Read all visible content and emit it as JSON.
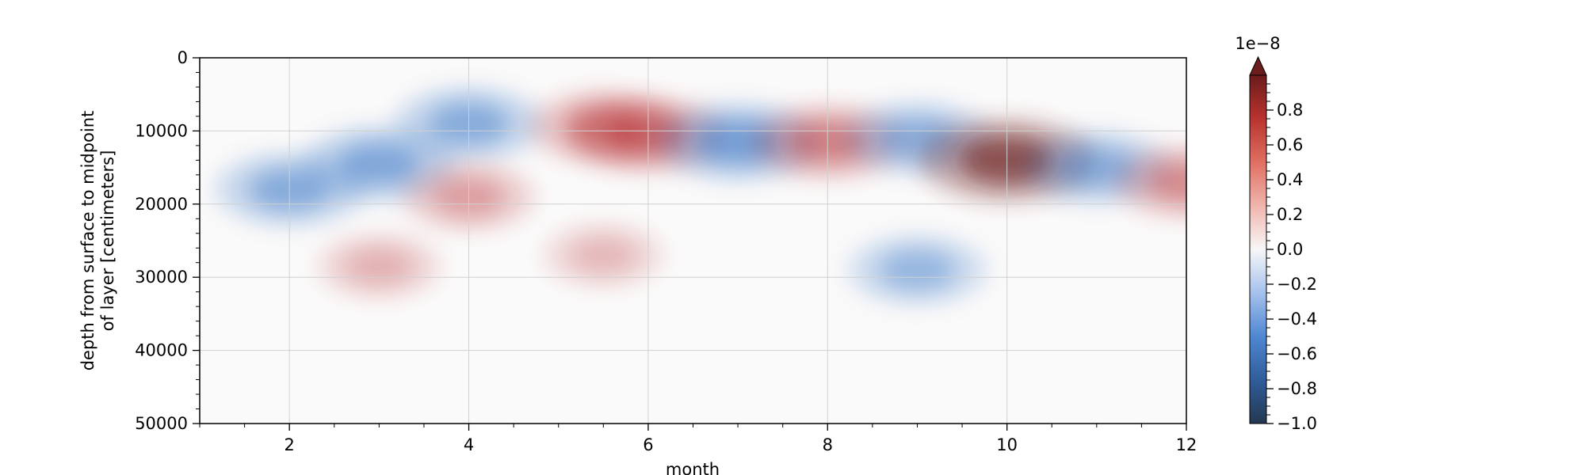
{
  "chart_data": {
    "type": "heatmap",
    "xlabel": "month",
    "ylabel_lines": [
      "depth from surface to midpoint",
      "of layer [centimeters]"
    ],
    "xlim": [
      1,
      12
    ],
    "ylim": [
      50000,
      0
    ],
    "x_ticks": [
      2,
      4,
      6,
      8,
      10,
      12
    ],
    "x_tick_labels": [
      "2",
      "4",
      "6",
      "8",
      "10",
      "12"
    ],
    "y_ticks": [
      0,
      10000,
      20000,
      30000,
      40000,
      50000
    ],
    "y_tick_labels": [
      "0",
      "10000",
      "20000",
      "30000",
      "40000",
      "50000"
    ],
    "grid": true,
    "colormap": "diverging blue-white-red",
    "colorbar": {
      "multiplier_label": "1e−8",
      "range": [
        -1.0,
        1.0
      ],
      "extend": "max",
      "ticks": [
        0.8,
        0.6,
        0.4,
        0.2,
        0.0,
        -0.2,
        -0.4,
        -0.6,
        -0.8,
        -1.0
      ],
      "tick_labels": [
        "0.8",
        "0.6",
        "0.4",
        "0.2",
        "0.0",
        "−0.2",
        "−0.4",
        "−0.6",
        "−0.8",
        "−1.0"
      ]
    },
    "features": [
      {
        "x": 2.0,
        "y": 18000,
        "value": -0.6
      },
      {
        "x": 3.0,
        "y": 14500,
        "value": -0.65
      },
      {
        "x": 4.0,
        "y": 9000,
        "value": -0.6
      },
      {
        "x": 4.0,
        "y": 19000,
        "value": 0.35
      },
      {
        "x": 5.5,
        "y": 9500,
        "value": 0.55
      },
      {
        "x": 6.0,
        "y": 10500,
        "value": 0.65
      },
      {
        "x": 7.0,
        "y": 11500,
        "value": -0.75
      },
      {
        "x": 8.0,
        "y": 11500,
        "value": 0.6
      },
      {
        "x": 9.0,
        "y": 11000,
        "value": -0.55
      },
      {
        "x": 9.0,
        "y": 29000,
        "value": -0.45
      },
      {
        "x": 10.0,
        "y": 14000,
        "value": 1.0
      },
      {
        "x": 11.0,
        "y": 15000,
        "value": -0.55
      },
      {
        "x": 12.0,
        "y": 17000,
        "value": 0.5
      },
      {
        "x": 3.0,
        "y": 28500,
        "value": 0.2
      },
      {
        "x": 5.5,
        "y": 27000,
        "value": 0.15
      }
    ]
  },
  "colors": {
    "negative_strong": "#2f6fc4",
    "positive_strong": "#b3262b",
    "extreme": "#6b1c1c",
    "grid": "#d0d0d0",
    "axis": "#000000"
  }
}
